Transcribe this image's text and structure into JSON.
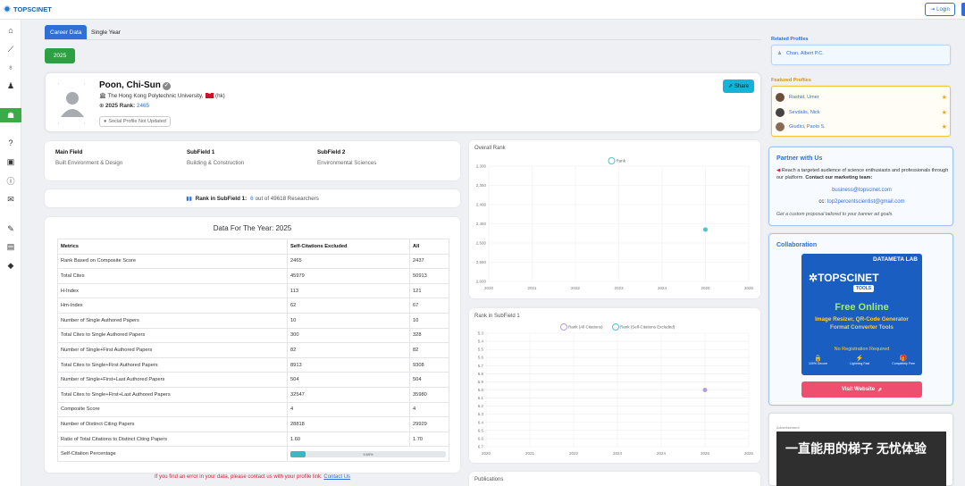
{
  "app": {
    "logo_text": "TOPSCINET",
    "login_label": "Login"
  },
  "sidebar": {
    "icons": [
      "home-icon",
      "chart-icon",
      "award-icon",
      "user-plus-icon",
      "users-icon",
      "question-icon",
      "image-icon",
      "info-icon",
      "mail-icon",
      "wrench-icon",
      "briefcase-icon",
      "tag-icon"
    ]
  },
  "tabs": [
    {
      "label": "Career Data",
      "active": true
    },
    {
      "label": "Single Year",
      "active": false
    }
  ],
  "year_button": "2025",
  "profile": {
    "name": "Poon, Chi-Sun",
    "institution": "The Hong Kong Polytechnic University,",
    "country": "(hk)",
    "rank_label": "2025 Rank:",
    "rank_value": "2465",
    "social": "Social Profile Not Updated",
    "share_label": "Share"
  },
  "fields": {
    "main_label": "Main Field",
    "main_value": "Built Environment & Design",
    "sub1_label": "SubField 1",
    "sub1_value": "Building & Construction",
    "sub2_label": "SubField 2",
    "sub2_value": "Environmental Sciences"
  },
  "subfield_rank": {
    "label": "Rank in SubField 1:",
    "rank": "6",
    "suffix": "out of 49618 Researchers"
  },
  "data_table": {
    "title": "Data For The Year: 2025",
    "headers": [
      "Metrics",
      "Self-Citations Excluded",
      "All"
    ],
    "rows": [
      [
        "Rank Based on Composite Score",
        "2465",
        "2437"
      ],
      [
        "Total Cites",
        "45979",
        "50913"
      ],
      [
        "H-Index",
        "113",
        "121"
      ],
      [
        "Hm-Index",
        "62",
        "67"
      ],
      [
        "Number of Single Authored Papers",
        "10",
        "10"
      ],
      [
        "Total Cites to Single Authored Papers",
        "300",
        "328"
      ],
      [
        "Number of Single+First Authored Papers",
        "82",
        "82"
      ],
      [
        "Total Cites to Single+First Authored Papers",
        "8913",
        "9308"
      ],
      [
        "Number of Single+First+Last Authored Papers",
        "504",
        "504"
      ],
      [
        "Total Cites to Single+First+Last Authored Papers",
        "32547",
        "35980"
      ],
      [
        "Composite Score",
        "4",
        "4"
      ],
      [
        "Number of Distinct Citing Papers",
        "28818",
        "29929"
      ],
      [
        "Ratio of Total Citations to Distinct Citing Papers",
        "1.60",
        "1.70"
      ]
    ],
    "self_citation": {
      "label": "Self-Citation Percentage",
      "percent": 9.69,
      "text": "9.69%"
    }
  },
  "error_note": {
    "text": "If you find an error in your data, please contact us with your profile link:",
    "link": "Contact Us"
  },
  "chart_data": [
    {
      "type": "scatter",
      "title": "Overall Rank",
      "series": [
        {
          "name": "Rank",
          "color": "#4fc3c7",
          "points": [
            [
              2025,
              2465
            ]
          ]
        }
      ],
      "x_ticks": [
        "2020",
        "2021",
        "2022",
        "2023",
        "2024",
        "2025",
        "2026"
      ],
      "y_ticks": [
        "2,300",
        "2,350",
        "2,400",
        "2,450",
        "2,500",
        "2,550",
        "2,600"
      ],
      "xlim": [
        2020,
        2026
      ],
      "ylim": [
        2300,
        2600
      ],
      "y_inverted": true,
      "legend": "top-center",
      "grid": true
    },
    {
      "type": "scatter",
      "title": "Rank in SubField 1",
      "series": [
        {
          "name": "Rank (All Citations)",
          "color": "#b39ddb",
          "points": [
            [
              2025,
              6
            ]
          ]
        },
        {
          "name": "Rank (Self-Citations Excluded)",
          "color": "#4fc3c7",
          "points": []
        }
      ],
      "x_ticks": [
        "2020",
        "2021",
        "2022",
        "2023",
        "2024",
        "2025",
        "2026"
      ],
      "y_ticks": [
        "5.3",
        "5.4",
        "5.5",
        "5.6",
        "5.7",
        "5.8",
        "5.9",
        "6.0",
        "6.1",
        "6.2",
        "6.3",
        "6.4",
        "6.5",
        "6.6",
        "6.7"
      ],
      "xlim": [
        2020,
        2026
      ],
      "ylim": [
        5.3,
        6.7
      ],
      "y_inverted": true,
      "legend": "top-center",
      "grid": true
    }
  ],
  "publications_title": "Publications",
  "right": {
    "related_title": "Related Profiles",
    "related": [
      "Chan, Albert P.C."
    ],
    "featured_title": "Featured Profiles",
    "featured": [
      "Rashid, Umer",
      "Sevdalis, Nick",
      "Giudici, Paolo S."
    ],
    "partner": {
      "title": "Partner with Us",
      "text": "Reach a targeted audience of science enthusiasts and professionals through our platform.",
      "cta": "Contact our marketing team:",
      "email1": "business@topscinet.com",
      "cc_label": "cc:",
      "email2": "top2percentscientist@gmail.com",
      "note": "Get a custom proposal tailored to your banner ad goals."
    },
    "collab": {
      "title": "Collaboration",
      "lab": "DATAMETA LAB",
      "logo": "TOPSCINET",
      "tools": "TOOLS",
      "free_online": "Free Online",
      "subtitle1": "Image Resizer, QR-Code Generator",
      "subtitle2": "Format Converter Tools",
      "no_reg": "No Registration Required",
      "feat1": "100% Secure",
      "feat2": "Lightning Fast",
      "feat3": "Completely Free",
      "visit": "Visit Website"
    },
    "ad": {
      "label": "Advertisement",
      "text": "一直能用的梯子 无忧体验"
    }
  }
}
